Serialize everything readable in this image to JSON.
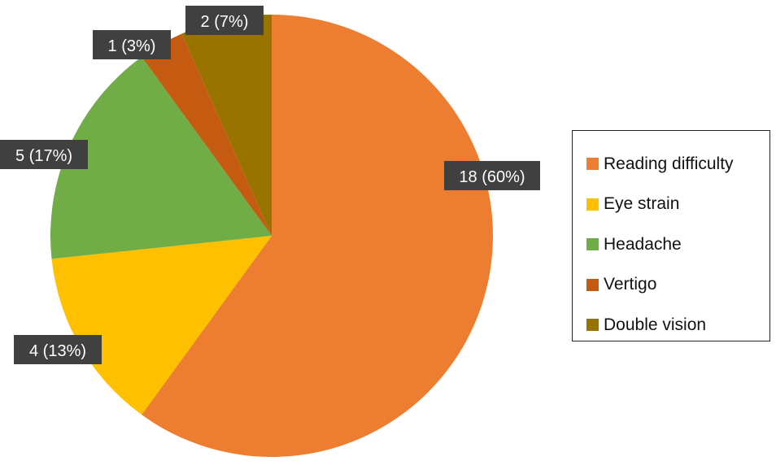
{
  "chart_data": {
    "type": "pie",
    "title": "",
    "start_angle_deg": 0,
    "direction": "clockwise",
    "legend_position": "right",
    "slices": [
      {
        "name": "Reading difficulty",
        "value": 18,
        "percent": "60%",
        "label": "18 (60%)",
        "color": "#ED7D31"
      },
      {
        "name": "Eye strain",
        "value": 4,
        "percent": "13%",
        "label": "4 (13%)",
        "color": "#FFC000"
      },
      {
        "name": "Headache",
        "value": 5,
        "percent": "17%",
        "label": "5 (17%)",
        "color": "#70AD47"
      },
      {
        "name": "Vertigo",
        "value": 1,
        "percent": "3%",
        "label": "1 (3%)",
        "color": "#C55A11"
      },
      {
        "name": "Double vision",
        "value": 2,
        "percent": "7%",
        "label": "2 (7%)",
        "color": "#997300"
      }
    ]
  }
}
